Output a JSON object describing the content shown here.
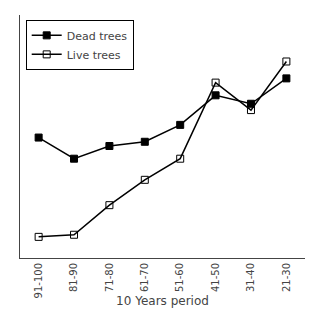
{
  "chart_data": {
    "type": "line",
    "categories": [
      "91-100",
      "81-90",
      "71-80",
      "61-70",
      "51-60",
      "41-50",
      "31-40",
      "21-30"
    ],
    "series": [
      {
        "name": "Dead trees",
        "color": "black",
        "marker": "square",
        "line_style": "solid",
        "values": [
          0.52,
          0.42,
          0.48,
          0.5,
          0.58,
          0.72,
          0.68,
          0.8
        ]
      },
      {
        "name": "Live trees",
        "color": "black",
        "marker": "square-open",
        "line_style": "solid",
        "values": [
          0.05,
          0.06,
          0.2,
          0.32,
          0.42,
          0.78,
          0.65,
          0.88
        ]
      }
    ],
    "xlabel": "10 Years period",
    "ylim": [
      -0.05,
      1.1
    ],
    "yticks": [],
    "tick_labels": "x",
    "grid": false,
    "legend": "upper left"
  }
}
